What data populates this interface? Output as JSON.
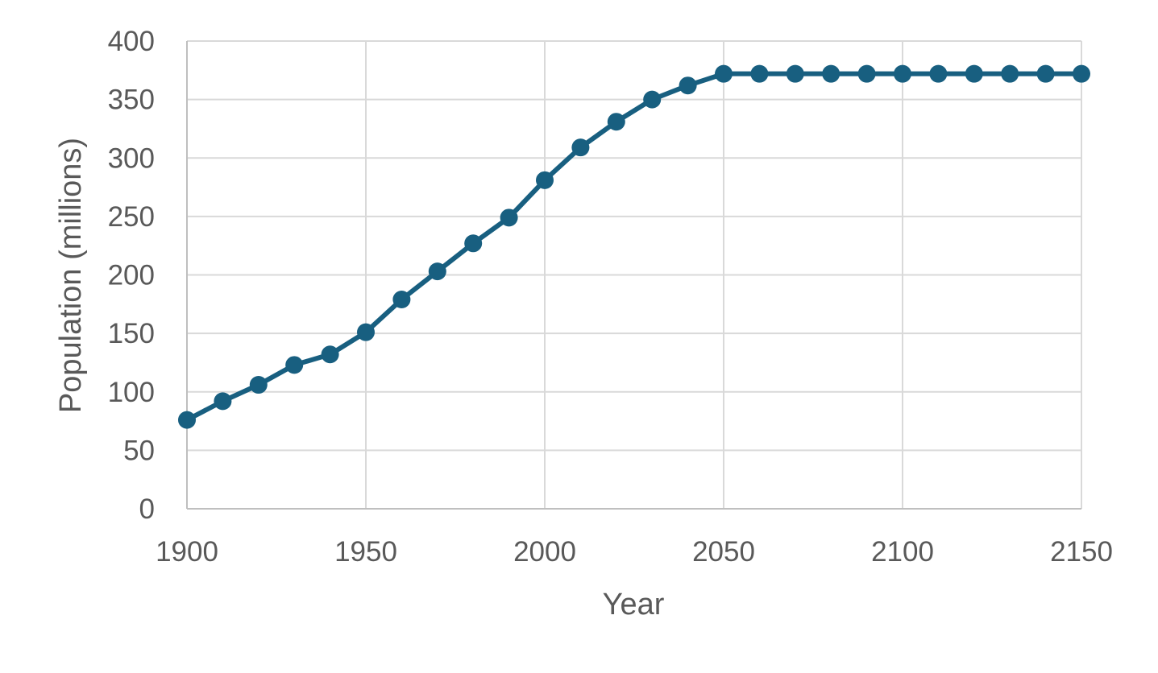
{
  "colors": {
    "series": "#185f80",
    "grid": "#d9d9d9",
    "text": "#595959"
  },
  "chart_data": {
    "type": "line",
    "title": "",
    "xlabel": "Year",
    "ylabel": "Population (millions)",
    "xlim": [
      1900,
      2150
    ],
    "ylim": [
      0,
      400
    ],
    "x_ticks": [
      1900,
      1950,
      2000,
      2050,
      2100,
      2150
    ],
    "y_ticks": [
      0,
      50,
      100,
      150,
      200,
      250,
      300,
      350,
      400
    ],
    "grid": true,
    "legend": "none",
    "series": [
      {
        "x": [
          1900,
          1910,
          1920,
          1930,
          1940,
          1950,
          1960,
          1970,
          1980,
          1990,
          2000,
          2010,
          2020,
          2030,
          2040,
          2050,
          2060,
          2070,
          2080,
          2090,
          2100,
          2110,
          2120,
          2130,
          2140,
          2150
        ],
        "y": [
          76,
          92,
          106,
          123,
          132,
          151,
          179,
          203,
          227,
          249,
          281,
          309,
          331,
          350,
          362,
          372,
          372,
          372,
          372,
          372,
          372,
          372,
          372,
          372,
          372,
          372
        ]
      }
    ]
  }
}
